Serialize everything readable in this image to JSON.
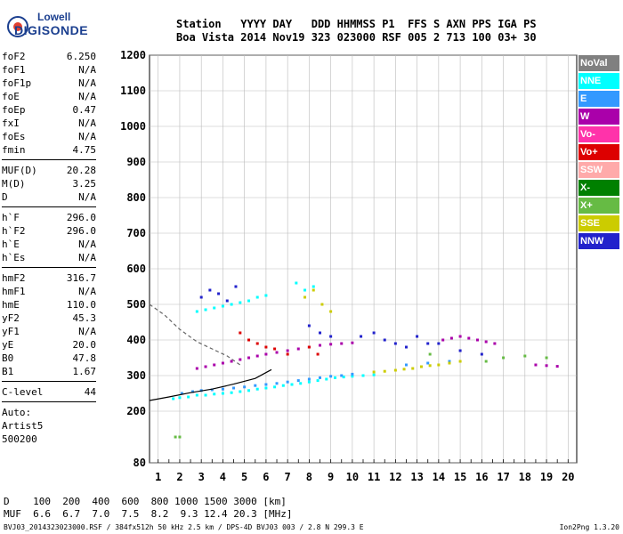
{
  "logo": {
    "line1": "Lowell",
    "line2": "DIGISONDE"
  },
  "header": {
    "line1": "Station   YYYY DAY   DDD HHMMSS P1  FFS S AXN PPS IGA PS",
    "line2": "Boa Vista 2014 Nov19 323 023000 RSF 005 2 713 100 03+ 30"
  },
  "params": [
    {
      "name": "foF2",
      "value": "6.250"
    },
    {
      "name": "foF1",
      "value": "N/A"
    },
    {
      "name": "foF1p",
      "value": "N/A"
    },
    {
      "name": "foE",
      "value": "N/A"
    },
    {
      "name": "foEp",
      "value": "0.47"
    },
    {
      "name": "fxI",
      "value": "N/A"
    },
    {
      "name": "foEs",
      "value": "N/A"
    },
    {
      "name": "fmin",
      "value": "4.75"
    },
    {
      "sep": true
    },
    {
      "name": "MUF(D)",
      "value": "20.28"
    },
    {
      "name": "M(D)",
      "value": "3.25"
    },
    {
      "name": "D",
      "value": "N/A"
    },
    {
      "sep": true
    },
    {
      "name": "h`F",
      "value": "296.0"
    },
    {
      "name": "h`F2",
      "value": "296.0"
    },
    {
      "name": "h`E",
      "value": "N/A"
    },
    {
      "name": "h`Es",
      "value": "N/A"
    },
    {
      "sep": true
    },
    {
      "name": "hmF2",
      "value": "316.7"
    },
    {
      "name": "hmF1",
      "value": "N/A"
    },
    {
      "name": "hmE",
      "value": "110.0"
    },
    {
      "name": "yF2",
      "value": "45.3"
    },
    {
      "name": "yF1",
      "value": "N/A"
    },
    {
      "name": "yE",
      "value": "20.0"
    },
    {
      "name": "B0",
      "value": "47.8"
    },
    {
      "name": "B1",
      "value": "1.67"
    },
    {
      "sep": true
    },
    {
      "name": "C-level",
      "value": "44"
    },
    {
      "sep": true
    }
  ],
  "auto": [
    "Auto:",
    "Artist5",
    "500200"
  ],
  "legend": [
    {
      "label": "NoVal",
      "color": "#808080"
    },
    {
      "label": "NNE",
      "color": "#00ffff"
    },
    {
      "label": "E",
      "color": "#3399ff"
    },
    {
      "label": "W",
      "color": "#aa00aa"
    },
    {
      "label": "Vo-",
      "color": "#ff33aa"
    },
    {
      "label": "Vo+",
      "color": "#dd0000"
    },
    {
      "label": "SSW",
      "color": "#ffaaaa"
    },
    {
      "label": "X-",
      "color": "#008000"
    },
    {
      "label": "X+",
      "color": "#66bb44"
    },
    {
      "label": "SSE",
      "color": "#cccc00"
    },
    {
      "label": "NNW",
      "color": "#2222cc"
    }
  ],
  "muf_table": {
    "line1": "D    100  200  400  600  800 1000 1500 3000 [km]",
    "line2": "MUF  6.6  6.7  7.0  7.5  8.2  9.3 12.4 20.3 [MHz]"
  },
  "footer": {
    "left": "BVJ03_2014323023000.RSF / 384fx512h 50 kHz 2.5 km / DPS-4D BVJ03 003 / 2.8 N 299.3 E",
    "right": "Ion2Png 1.3.20"
  },
  "chart_data": {
    "type": "scatter",
    "x_ticks": [
      1,
      2,
      3,
      4,
      5,
      6,
      7,
      8,
      9,
      10,
      11,
      12,
      13,
      14,
      15,
      16,
      17,
      18,
      19,
      20
    ],
    "y_ticks": [
      80,
      200,
      300,
      400,
      500,
      600,
      700,
      800,
      900,
      1000,
      1100,
      1200
    ],
    "xlim": [
      0.6,
      20.4
    ],
    "ylim": [
      80,
      1200
    ],
    "grid": true,
    "legend_position": "right",
    "series": [
      {
        "name": "NNE",
        "color": "#00ffff",
        "points": [
          [
            1.7,
            235
          ],
          [
            2.0,
            238
          ],
          [
            2.4,
            240
          ],
          [
            2.8,
            245
          ],
          [
            3.2,
            245
          ],
          [
            3.6,
            248
          ],
          [
            4.0,
            250
          ],
          [
            4.4,
            252
          ],
          [
            4.8,
            255
          ],
          [
            5.2,
            258
          ],
          [
            5.6,
            262
          ],
          [
            6.0,
            265
          ],
          [
            6.4,
            268
          ],
          [
            6.8,
            272
          ],
          [
            7.2,
            275
          ],
          [
            7.6,
            278
          ],
          [
            8.0,
            282
          ],
          [
            8.4,
            286
          ],
          [
            8.8,
            290
          ],
          [
            9.2,
            294
          ],
          [
            9.6,
            296
          ],
          [
            10.0,
            298
          ],
          [
            10.5,
            300
          ],
          [
            11.0,
            302
          ],
          [
            2.8,
            480
          ],
          [
            3.2,
            485
          ],
          [
            3.6,
            490
          ],
          [
            4.0,
            495
          ],
          [
            4.4,
            500
          ],
          [
            4.8,
            505
          ],
          [
            5.2,
            510
          ],
          [
            5.6,
            520
          ],
          [
            6.0,
            525
          ],
          [
            7.4,
            560
          ],
          [
            7.8,
            540
          ],
          [
            8.2,
            550
          ]
        ]
      },
      {
        "name": "E",
        "color": "#3399ff",
        "points": [
          [
            2.1,
            250
          ],
          [
            2.6,
            255
          ],
          [
            3.0,
            258
          ],
          [
            3.5,
            260
          ],
          [
            4.0,
            262
          ],
          [
            4.5,
            265
          ],
          [
            5.0,
            268
          ],
          [
            5.5,
            272
          ],
          [
            6.0,
            275
          ],
          [
            6.5,
            278
          ],
          [
            7.0,
            282
          ],
          [
            7.5,
            286
          ],
          [
            8.0,
            290
          ],
          [
            8.5,
            294
          ],
          [
            9.0,
            298
          ],
          [
            9.5,
            300
          ],
          [
            10.0,
            304
          ],
          [
            12.5,
            330
          ],
          [
            13.5,
            335
          ],
          [
            14.5,
            340
          ]
        ]
      },
      {
        "name": "W",
        "color": "#aa00aa",
        "points": [
          [
            2.8,
            320
          ],
          [
            3.2,
            325
          ],
          [
            3.6,
            330
          ],
          [
            4.0,
            335
          ],
          [
            4.4,
            340
          ],
          [
            4.8,
            345
          ],
          [
            5.2,
            350
          ],
          [
            5.6,
            355
          ],
          [
            6.0,
            360
          ],
          [
            6.5,
            365
          ],
          [
            7.0,
            370
          ],
          [
            7.5,
            375
          ],
          [
            8.0,
            380
          ],
          [
            8.5,
            385
          ],
          [
            9.0,
            388
          ],
          [
            9.5,
            390
          ],
          [
            10.0,
            392
          ],
          [
            14.2,
            400
          ],
          [
            14.6,
            405
          ],
          [
            15.0,
            410
          ],
          [
            15.4,
            405
          ],
          [
            15.8,
            400
          ],
          [
            16.2,
            395
          ],
          [
            16.6,
            390
          ],
          [
            18.5,
            330
          ],
          [
            19.0,
            328
          ],
          [
            19.5,
            326
          ]
        ]
      },
      {
        "name": "NNW",
        "color": "#2222cc",
        "points": [
          [
            3.0,
            520
          ],
          [
            3.4,
            540
          ],
          [
            3.8,
            530
          ],
          [
            4.2,
            510
          ],
          [
            4.6,
            550
          ],
          [
            8.0,
            440
          ],
          [
            8.5,
            420
          ],
          [
            9.0,
            410
          ],
          [
            10.4,
            410
          ],
          [
            11.0,
            420
          ],
          [
            11.5,
            400
          ],
          [
            12.0,
            390
          ],
          [
            12.5,
            380
          ],
          [
            13.0,
            410
          ],
          [
            13.5,
            390
          ],
          [
            14.0,
            390
          ],
          [
            15.0,
            370
          ],
          [
            16.0,
            360
          ]
        ]
      },
      {
        "name": "SSE",
        "color": "#cccc00",
        "points": [
          [
            7.8,
            520
          ],
          [
            8.2,
            540
          ],
          [
            8.6,
            500
          ],
          [
            9.0,
            480
          ],
          [
            11.0,
            310
          ],
          [
            11.5,
            312
          ],
          [
            12.0,
            315
          ],
          [
            12.4,
            318
          ],
          [
            12.8,
            320
          ],
          [
            13.2,
            325
          ],
          [
            13.6,
            328
          ],
          [
            14.0,
            330
          ],
          [
            14.5,
            335
          ],
          [
            15.0,
            340
          ]
        ]
      },
      {
        "name": "Vo+",
        "color": "#dd0000",
        "points": [
          [
            4.8,
            420
          ],
          [
            5.2,
            400
          ],
          [
            5.6,
            390
          ],
          [
            6.0,
            380
          ],
          [
            6.4,
            375
          ],
          [
            7.0,
            360
          ],
          [
            8.0,
            380
          ],
          [
            8.4,
            360
          ]
        ]
      },
      {
        "name": "X+",
        "color": "#66bb44",
        "points": [
          [
            1.8,
            140
          ],
          [
            2.0,
            140
          ],
          [
            13.6,
            360
          ],
          [
            16.2,
            340
          ],
          [
            17.0,
            350
          ],
          [
            18.0,
            355
          ],
          [
            19.0,
            350
          ]
        ]
      }
    ],
    "curves": [
      {
        "name": "profile",
        "color": "#000000",
        "dashed": false,
        "points": [
          [
            0.6,
            230
          ],
          [
            1.5,
            240
          ],
          [
            2.5,
            252
          ],
          [
            3.5,
            262
          ],
          [
            4.5,
            276
          ],
          [
            5.5,
            292
          ],
          [
            6.25,
            316.7
          ]
        ]
      },
      {
        "name": "x-trace",
        "color": "#666666",
        "dashed": true,
        "points": [
          [
            0.6,
            500
          ],
          [
            1.3,
            470
          ],
          [
            2.0,
            430
          ],
          [
            2.8,
            395
          ],
          [
            3.5,
            375
          ],
          [
            4.2,
            355
          ],
          [
            4.8,
            330
          ]
        ]
      }
    ]
  }
}
